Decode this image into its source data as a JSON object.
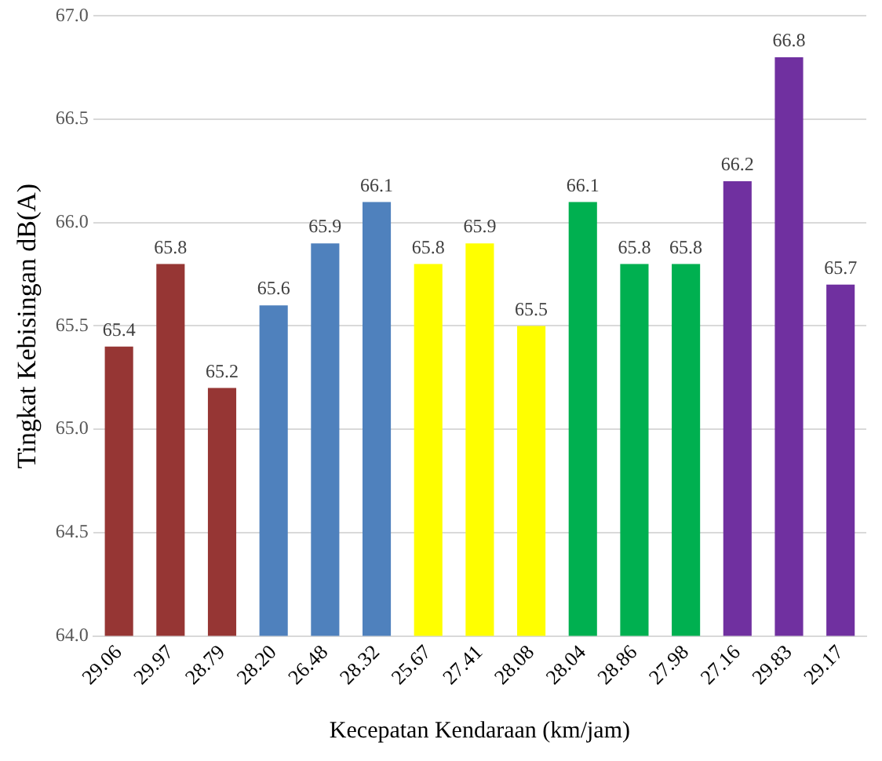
{
  "chart_data": {
    "type": "bar",
    "xlabel": "Kecepatan Kendaraan (km/jam)",
    "ylabel": "Tingkat Kebisingan dB(A)",
    "categories": [
      "29.06",
      "29.97",
      "28.79",
      "28.20",
      "26.48",
      "28.32",
      "25.67",
      "27.41",
      "28.08",
      "28.04",
      "28.86",
      "27.98",
      "27.16",
      "29.83",
      "29.17"
    ],
    "values": [
      65.4,
      65.8,
      65.2,
      65.6,
      65.9,
      66.1,
      65.8,
      65.9,
      65.5,
      66.1,
      65.8,
      65.8,
      66.2,
      66.8,
      65.7
    ],
    "colors": [
      "#963634",
      "#963634",
      "#963634",
      "#4f81bd",
      "#4f81bd",
      "#4f81bd",
      "#ffff00",
      "#ffff00",
      "#ffff00",
      "#00b050",
      "#00b050",
      "#00b050",
      "#7030a0",
      "#7030a0",
      "#7030a0"
    ],
    "ylim": [
      64,
      67
    ],
    "yticks": [
      {
        "value": 64,
        "label": "64.0"
      },
      {
        "value": 64.5,
        "label": "64.5"
      },
      {
        "value": 65,
        "label": "65.0"
      },
      {
        "value": 65.5,
        "label": "65.5"
      },
      {
        "value": 66,
        "label": "66.0"
      },
      {
        "value": 66.5,
        "label": "66.5"
      },
      {
        "value": 67,
        "label": "67.0"
      }
    ],
    "grid": "y",
    "data_labels": true,
    "legend": false
  }
}
